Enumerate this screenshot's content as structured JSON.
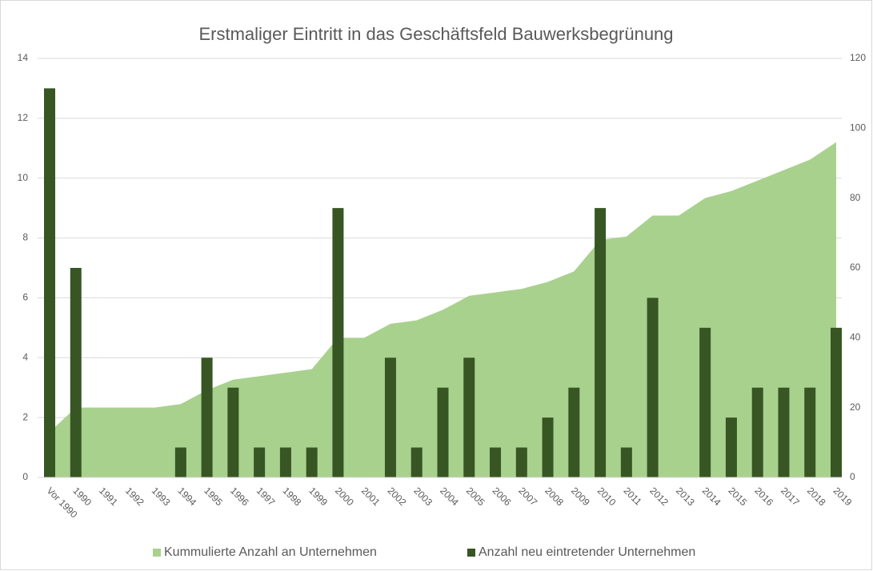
{
  "chart_data": {
    "type": "bar-area",
    "title": "Erstmaliger Eintritt in das Geschäftsfeld Bauwerksbegrünung",
    "categories": [
      "Vor 1990",
      "1990",
      "1991",
      "1992",
      "1993",
      "1994",
      "1995",
      "1996",
      "1997",
      "1998",
      "1999",
      "2000",
      "2001",
      "2002",
      "2003",
      "2004",
      "2005",
      "2006",
      "2007",
      "2008",
      "2009",
      "2010",
      "2011",
      "2012",
      "2013",
      "2014",
      "2015",
      "2016",
      "2017",
      "2018",
      "2019"
    ],
    "series": [
      {
        "name": "Kummulierte Anzahl an Unternehmen",
        "type": "area",
        "axis": "y2",
        "color": "#a9d18e",
        "values": [
          13,
          20,
          20,
          20,
          20,
          21,
          25,
          28,
          29,
          30,
          31,
          40,
          40,
          44,
          45,
          48,
          52,
          53,
          54,
          56,
          59,
          68,
          69,
          75,
          75,
          80,
          82,
          85,
          88,
          91,
          96
        ]
      },
      {
        "name": "Anzahl neu eintretender Unternehmen",
        "type": "bar",
        "axis": "y",
        "color": "#375623",
        "values": [
          13,
          7,
          0,
          0,
          0,
          1,
          4,
          3,
          1,
          1,
          1,
          9,
          0,
          4,
          1,
          3,
          4,
          1,
          1,
          2,
          3,
          9,
          1,
          6,
          0,
          5,
          2,
          3,
          3,
          3,
          5
        ]
      }
    ],
    "ylim": [
      0,
      14
    ],
    "yticks": [
      0,
      2,
      4,
      6,
      8,
      10,
      12,
      14
    ],
    "y2lim": [
      0,
      120
    ],
    "y2ticks": [
      0,
      20,
      40,
      60,
      80,
      100,
      120
    ],
    "grid": true,
    "legend": "bottom"
  }
}
